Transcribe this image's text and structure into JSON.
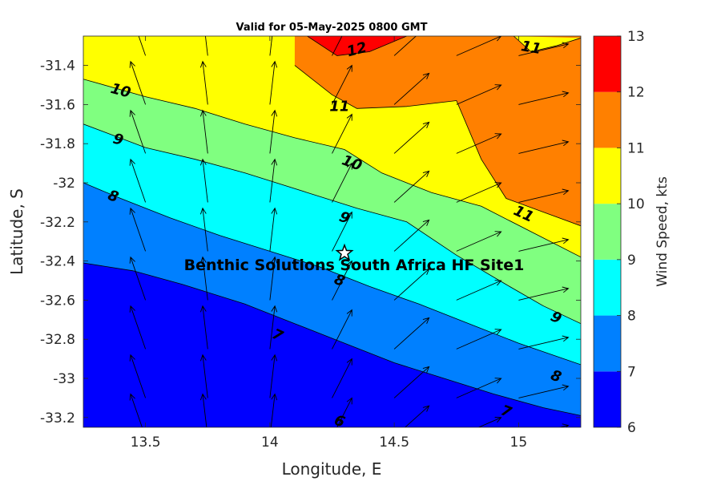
{
  "chart_data": {
    "type": "contour",
    "title": "Valid for 05-May-2025 0800 GMT",
    "xlabel": "Longitude, E",
    "ylabel": "Latitude, S",
    "xlim": [
      13.25,
      15.25
    ],
    "ylim": [
      -33.25,
      -31.25
    ],
    "xticks": [
      13.5,
      14,
      14.5,
      15
    ],
    "xtick_labels": [
      "13.5",
      "14",
      "14.5",
      "15"
    ],
    "yticks": [
      -31.4,
      -31.6,
      -31.8,
      -32,
      -32.2,
      -32.4,
      -32.6,
      -32.8,
      -33,
      -33.2
    ],
    "ytick_labels": [
      "-31.4",
      "-31.6",
      "-31.8",
      "-32",
      "-32.2",
      "-32.4",
      "-32.6",
      "-32.8",
      "-33",
      "-33.2"
    ],
    "colorbar": {
      "label": "Wind Speed, kts",
      "levels": [
        6,
        7,
        8,
        9,
        10,
        11,
        12,
        13
      ],
      "level_labels": [
        "6",
        "7",
        "8",
        "9",
        "10",
        "11",
        "12",
        "13"
      ],
      "colors": [
        "#0000ff",
        "#0080ff",
        "#00ffff",
        "#80ff80",
        "#ffff00",
        "#ff8000",
        "#ff0000"
      ]
    },
    "contour_lines": [
      {
        "level": 7,
        "points": [
          [
            13.25,
            -32.41
          ],
          [
            13.45,
            -32.45
          ],
          [
            13.65,
            -32.52
          ],
          [
            13.9,
            -32.62
          ],
          [
            14.1,
            -32.72
          ],
          [
            14.3,
            -32.82
          ],
          [
            14.5,
            -32.92
          ],
          [
            14.7,
            -33.0
          ],
          [
            14.9,
            -33.08
          ],
          [
            15.1,
            -33.15
          ],
          [
            15.25,
            -33.19
          ]
        ]
      },
      {
        "level": 8,
        "points": [
          [
            13.25,
            -32.0
          ],
          [
            13.4,
            -32.08
          ],
          [
            13.6,
            -32.18
          ],
          [
            13.8,
            -32.27
          ],
          [
            14.0,
            -32.35
          ],
          [
            14.2,
            -32.43
          ],
          [
            14.4,
            -32.53
          ],
          [
            14.6,
            -32.62
          ],
          [
            14.8,
            -32.72
          ],
          [
            15.0,
            -32.82
          ],
          [
            15.25,
            -32.93
          ]
        ]
      },
      {
        "level": 9,
        "points": [
          [
            13.25,
            -31.7
          ],
          [
            13.5,
            -31.82
          ],
          [
            13.7,
            -31.88
          ],
          [
            13.9,
            -31.95
          ],
          [
            14.15,
            -32.05
          ],
          [
            14.35,
            -32.13
          ],
          [
            14.55,
            -32.2
          ],
          [
            14.75,
            -32.37
          ],
          [
            14.95,
            -32.52
          ],
          [
            15.1,
            -32.63
          ],
          [
            15.25,
            -32.72
          ]
        ]
      },
      {
        "level": 10,
        "points": [
          [
            13.25,
            -31.47
          ],
          [
            13.5,
            -31.56
          ],
          [
            13.7,
            -31.62
          ],
          [
            13.9,
            -31.7
          ],
          [
            14.1,
            -31.77
          ],
          [
            14.3,
            -31.83
          ],
          [
            14.45,
            -31.95
          ],
          [
            14.65,
            -32.05
          ],
          [
            14.85,
            -32.12
          ],
          [
            15.05,
            -32.25
          ],
          [
            15.25,
            -32.38
          ]
        ]
      },
      {
        "level": 11,
        "points": [
          [
            14.1,
            -31.4
          ],
          [
            14.25,
            -31.55
          ],
          [
            14.35,
            -31.62
          ],
          [
            14.55,
            -31.61
          ],
          [
            14.75,
            -31.58
          ],
          [
            14.85,
            -31.88
          ],
          [
            14.95,
            -32.08
          ],
          [
            15.1,
            -32.15
          ],
          [
            15.25,
            -32.22
          ]
        ]
      },
      {
        "level": 11,
        "points": [
          [
            14.98,
            -31.25
          ],
          [
            15.05,
            -31.33
          ],
          [
            15.15,
            -31.3
          ],
          [
            15.25,
            -31.26
          ]
        ]
      },
      {
        "level": 12,
        "points": [
          [
            14.15,
            -31.25
          ],
          [
            14.27,
            -31.35
          ],
          [
            14.4,
            -31.33
          ],
          [
            14.55,
            -31.25
          ]
        ]
      }
    ],
    "contour_labels": [
      {
        "text": "12",
        "x": 14.35,
        "y": -31.32,
        "angle": -15
      },
      {
        "text": "11",
        "x": 15.05,
        "y": -31.31,
        "angle": 10
      },
      {
        "text": "10",
        "x": 13.4,
        "y": -31.53,
        "angle": 15
      },
      {
        "text": "11",
        "x": 14.28,
        "y": -31.61,
        "angle": 0
      },
      {
        "text": "9",
        "x": 13.39,
        "y": -31.78,
        "angle": 15
      },
      {
        "text": "10",
        "x": 14.33,
        "y": -31.9,
        "angle": 20
      },
      {
        "text": "11",
        "x": 15.02,
        "y": -32.16,
        "angle": 25
      },
      {
        "text": "8",
        "x": 13.37,
        "y": -32.07,
        "angle": 20
      },
      {
        "text": "9",
        "x": 14.3,
        "y": -32.18,
        "angle": 20
      },
      {
        "text": "8",
        "x": 14.28,
        "y": -32.5,
        "angle": 20
      },
      {
        "text": "7",
        "x": 14.03,
        "y": -32.78,
        "angle": 25
      },
      {
        "text": "9",
        "x": 15.15,
        "y": -32.69,
        "angle": 25
      },
      {
        "text": "8",
        "x": 15.15,
        "y": -32.99,
        "angle": 20
      },
      {
        "text": "7",
        "x": 14.95,
        "y": -33.17,
        "angle": 20
      },
      {
        "text": "6",
        "x": 14.28,
        "y": -33.22,
        "angle": 20
      }
    ],
    "site": {
      "label": "Benthic Solutions South Africa HF Site1",
      "lon": 14.3,
      "lat": -32.36
    },
    "arrow_cols": [
      13.25,
      13.5,
      13.75,
      14.0,
      14.25,
      14.5,
      14.75,
      15.0,
      15.25
    ],
    "arrow_rows": [
      -31.35,
      -31.6,
      -31.85,
      -32.1,
      -32.35,
      -32.6,
      -32.85,
      -33.1,
      -33.3
    ],
    "arrow_dx_deg": [
      -0.1,
      -0.06,
      -0.02,
      0.02,
      0.08,
      0.14,
      0.18,
      0.2,
      0.2
    ],
    "arrow_dy_deg": [
      0.2,
      0.22,
      0.22,
      0.22,
      0.2,
      0.16,
      0.1,
      0.06,
      0.03
    ]
  }
}
